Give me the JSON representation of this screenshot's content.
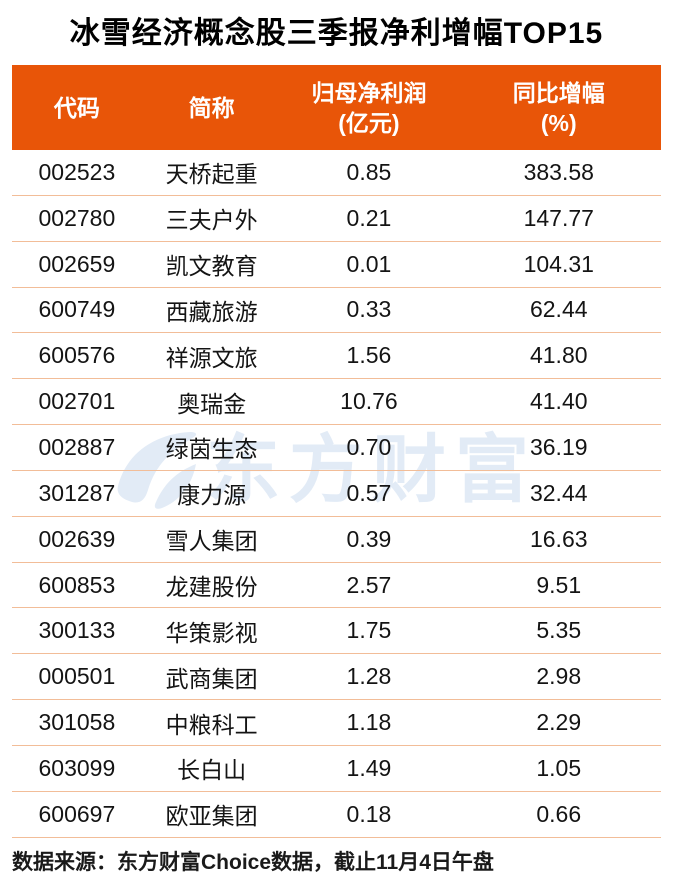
{
  "title": "冰雪经济概念股三季报净利增幅TOP15",
  "table": {
    "headers": [
      {
        "line1": "代码",
        "line2": ""
      },
      {
        "line1": "简称",
        "line2": ""
      },
      {
        "line1": "归母净利润",
        "line2": "(亿元)"
      },
      {
        "line1": "同比增幅",
        "line2": "(%)"
      }
    ],
    "rows": [
      {
        "code": "002523",
        "name": "天桥起重",
        "profit": "0.85",
        "growth": "383.58"
      },
      {
        "code": "002780",
        "name": "三夫户外",
        "profit": "0.21",
        "growth": "147.77"
      },
      {
        "code": "002659",
        "name": "凯文教育",
        "profit": "0.01",
        "growth": "104.31"
      },
      {
        "code": "600749",
        "name": "西藏旅游",
        "profit": "0.33",
        "growth": "62.44"
      },
      {
        "code": "600576",
        "name": "祥源文旅",
        "profit": "1.56",
        "growth": "41.80"
      },
      {
        "code": "002701",
        "name": "奥瑞金",
        "profit": "10.76",
        "growth": "41.40"
      },
      {
        "code": "002887",
        "name": "绿茵生态",
        "profit": "0.70",
        "growth": "36.19"
      },
      {
        "code": "301287",
        "name": "康力源",
        "profit": "0.57",
        "growth": "32.44"
      },
      {
        "code": "002639",
        "name": "雪人集团",
        "profit": "0.39",
        "growth": "16.63"
      },
      {
        "code": "600853",
        "name": "龙建股份",
        "profit": "2.57",
        "growth": "9.51"
      },
      {
        "code": "300133",
        "name": "华策影视",
        "profit": "1.75",
        "growth": "5.35"
      },
      {
        "code": "000501",
        "name": "武商集团",
        "profit": "1.28",
        "growth": "2.98"
      },
      {
        "code": "301058",
        "name": "中粮科工",
        "profit": "1.18",
        "growth": "2.29"
      },
      {
        "code": "603099",
        "name": "长白山",
        "profit": "1.49",
        "growth": "1.05"
      },
      {
        "code": "600697",
        "name": "欧亚集团",
        "profit": "0.18",
        "growth": "0.66"
      }
    ]
  },
  "watermark": {
    "text": "东方财富",
    "logo": "eastmoney-swoosh-icon"
  },
  "footer": {
    "text": "数据来源：东方财富Choice数据，截止11月4日午盘"
  },
  "colors": {
    "header_bg": "#e85508",
    "header_text": "#ffffff",
    "divider": "#f2bd98",
    "title_text": "#000000",
    "body_text": "#141414",
    "watermark": "#e2ebf6"
  },
  "chart_data": {
    "type": "table",
    "title": "冰雪经济概念股三季报净利增幅TOP15",
    "columns": [
      "代码",
      "简称",
      "归母净利润(亿元)",
      "同比增幅(%)"
    ],
    "rows": [
      [
        "002523",
        "天桥起重",
        0.85,
        383.58
      ],
      [
        "002780",
        "三夫户外",
        0.21,
        147.77
      ],
      [
        "002659",
        "凯文教育",
        0.01,
        104.31
      ],
      [
        "600749",
        "西藏旅游",
        0.33,
        62.44
      ],
      [
        "600576",
        "祥源文旅",
        1.56,
        41.8
      ],
      [
        "002701",
        "奥瑞金",
        10.76,
        41.4
      ],
      [
        "002887",
        "绿茵生态",
        0.7,
        36.19
      ],
      [
        "301287",
        "康力源",
        0.57,
        32.44
      ],
      [
        "002639",
        "雪人集团",
        0.39,
        16.63
      ],
      [
        "600853",
        "龙建股份",
        2.57,
        9.51
      ],
      [
        "300133",
        "华策影视",
        1.75,
        5.35
      ],
      [
        "000501",
        "武商集团",
        1.28,
        2.98
      ],
      [
        "301058",
        "中粮科工",
        1.18,
        2.29
      ],
      [
        "603099",
        "长白山",
        1.49,
        1.05
      ],
      [
        "600697",
        "欧亚集团",
        0.18,
        0.66
      ]
    ],
    "source_note": "数据来源：东方财富Choice数据，截止11月4日午盘"
  }
}
